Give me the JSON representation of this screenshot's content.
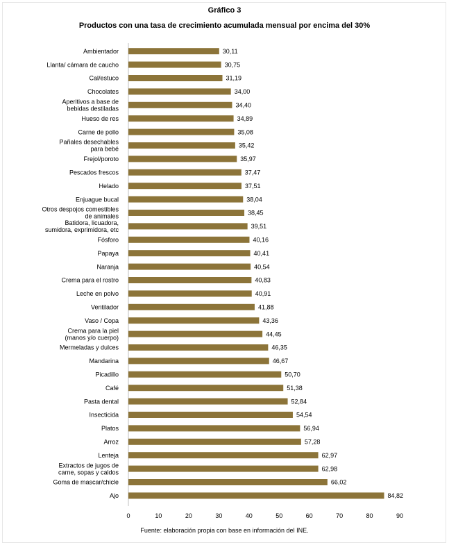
{
  "chart_data": {
    "type": "bar",
    "orientation": "horizontal",
    "title": "Gráfico 3",
    "subtitle": "Productos con una tasa de crecimiento acumulada mensual por encima del 30%",
    "categories": [
      "Ambientador",
      "Llanta/ cámara de caucho",
      "Cal/estuco",
      "Chocolates",
      "Aperitivos a base de\nbebidas destiladas",
      "Hueso de res",
      "Carne de pollo",
      "Pañales desechables\npara bebé",
      "Frejol/poroto",
      "Pescados frescos",
      "Helado",
      "Enjuague bucal",
      "Otros despojos comestibles\nde animales",
      "Batidora, licuadora,\nsumidora, exprimidora, etc",
      "Fósforo",
      "Papaya",
      "Naranja",
      "Crema para el rostro",
      "Leche en polvo",
      "Ventilador",
      "Vaso / Copa",
      "Crema para la piel\n(manos y/o cuerpo)",
      "Mermeladas y dulces",
      "Mandarina",
      "Picadillo",
      "Café",
      "Pasta dental",
      "Insecticida",
      "Platos",
      "Arroz",
      "Lenteja",
      "Extractos de jugos de\ncarne, sopas y caldos",
      "Goma de mascar/chicle",
      "Ajo"
    ],
    "values": [
      30.11,
      30.75,
      31.19,
      34.0,
      34.4,
      34.89,
      35.08,
      35.42,
      35.97,
      37.47,
      37.51,
      38.04,
      38.45,
      39.51,
      40.16,
      40.41,
      40.54,
      40.83,
      40.91,
      41.88,
      43.36,
      44.45,
      46.35,
      46.67,
      50.7,
      51.38,
      52.84,
      54.54,
      56.94,
      57.28,
      62.97,
      62.98,
      66.02,
      84.82
    ],
    "value_labels": [
      "30,11",
      "30,75",
      "31,19",
      "34,00",
      "34,40",
      "34,89",
      "35,08",
      "35,42",
      "35,97",
      "37,47",
      "37,51",
      "38,04",
      "38,45",
      "39,51",
      "40,16",
      "40,41",
      "40,54",
      "40,83",
      "40,91",
      "41,88",
      "43,36",
      "44,45",
      "46,35",
      "46,67",
      "50,70",
      "51,38",
      "52,84",
      "54,54",
      "56,94",
      "57,28",
      "62,97",
      "62,98",
      "66,02",
      "84,82"
    ],
    "xlim": [
      0,
      90
    ],
    "xticks": [
      0,
      10,
      20,
      30,
      40,
      50,
      60,
      70,
      80,
      90
    ],
    "grid": false,
    "legend": "none",
    "bar_color": "#8c7439",
    "source": "Fuente: elaboración propia con base en información del INE."
  }
}
